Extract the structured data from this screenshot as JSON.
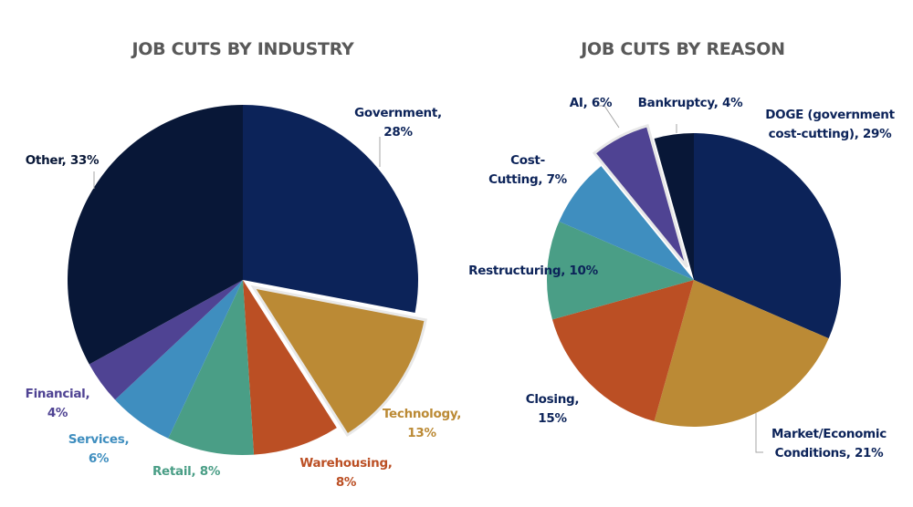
{
  "chart_data": [
    {
      "type": "pie",
      "title": "JOB CUTS BY INDUSTRY",
      "start": "top",
      "direction": "clockwise",
      "slices": [
        {
          "label": "Government",
          "value": 28,
          "display": [
            "Government,",
            "28%"
          ],
          "color": "#0c2359",
          "label_color": "#0c2359",
          "exploded": false
        },
        {
          "label": "Technology",
          "value": 13,
          "display": [
            "Technology,",
            "13%"
          ],
          "color": "#bb8a35",
          "label_color": "#bb8a35",
          "exploded": true
        },
        {
          "label": "Warehousing",
          "value": 8,
          "display": [
            "Warehousing,",
            "8%"
          ],
          "color": "#bb4f24",
          "label_color": "#bb4f24",
          "exploded": false
        },
        {
          "label": "Retail",
          "value": 8,
          "display": [
            "Retail, 8%"
          ],
          "color": "#4a9e86",
          "label_color": "#4a9e86",
          "exploded": false
        },
        {
          "label": "Services",
          "value": 6,
          "display": [
            "Services,",
            "6%"
          ],
          "color": "#3f8ebf",
          "label_color": "#3f8ebf",
          "exploded": false
        },
        {
          "label": "Financial",
          "value": 4,
          "display": [
            "Financial,",
            "4%"
          ],
          "color": "#4f4393",
          "label_color": "#4f4393",
          "exploded": false
        },
        {
          "label": "Other",
          "value": 33,
          "display": [
            "Other, 33%"
          ],
          "color": "#081737",
          "label_color": "#081737",
          "exploded": false
        }
      ]
    },
    {
      "type": "pie",
      "title": "JOB CUTS BY REASON",
      "start": "top",
      "direction": "clockwise",
      "slices": [
        {
          "label": "DOGE (government cost-cutting)",
          "value": 29,
          "display": [
            "DOGE (government",
            "cost-cutting), 29%"
          ],
          "color": "#0c2359",
          "label_color": "#0c2359",
          "exploded": false
        },
        {
          "label": "Market/Economic Conditions",
          "value": 21,
          "display": [
            "Market/Economic",
            "Conditions, 21%"
          ],
          "color": "#bb8a35",
          "label_color": "#0c2359",
          "exploded": false
        },
        {
          "label": "Closing",
          "value": 15,
          "display": [
            "Closing,",
            "15%"
          ],
          "color": "#bb4f24",
          "label_color": "#0c2359",
          "exploded": false
        },
        {
          "label": "Restructuring",
          "value": 10,
          "display": [
            "Restructuring, 10%"
          ],
          "color": "#4a9e86",
          "label_color": "#0c2359",
          "exploded": false
        },
        {
          "label": "Cost-Cutting",
          "value": 7,
          "display": [
            "Cost-",
            "Cutting, 7%"
          ],
          "color": "#3f8ebf",
          "label_color": "#0c2359",
          "exploded": false
        },
        {
          "label": "AI",
          "value": 6,
          "display": [
            "AI, 6%"
          ],
          "color": "#4f4393",
          "label_color": "#0c2359",
          "exploded": true
        },
        {
          "label": "Bankruptcy",
          "value": 4,
          "display": [
            "Bankruptcy, 4%"
          ],
          "color": "#081737",
          "label_color": "#0c2359",
          "exploded": false
        }
      ]
    }
  ]
}
